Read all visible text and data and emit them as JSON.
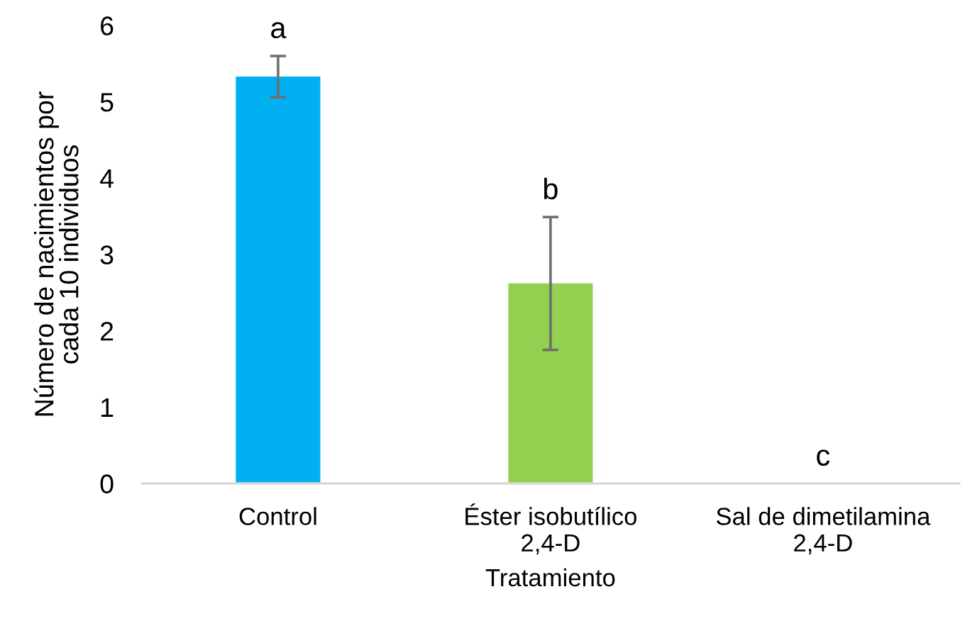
{
  "chart_data": {
    "type": "bar",
    "xlabel": "Tratamiento",
    "ylabel": "Número de nacimientos por\ncada 10 individuos",
    "categories": [
      "Control",
      "Éster isobutílico\n2,4-D",
      "Sal de dimetilamina\n2,4-D"
    ],
    "values": [
      5.33,
      2.62,
      0
    ],
    "errors": [
      0.27,
      0.87,
      null
    ],
    "colors": [
      "#00b0f0",
      "#92d050",
      "#a5a5a5"
    ],
    "ylim": [
      0,
      6
    ],
    "yticks": [
      0,
      1,
      2,
      3,
      4,
      5,
      6
    ],
    "grid": false,
    "legend": false,
    "annotations": [
      {
        "text": "a",
        "x": "Control",
        "y": 5.6
      },
      {
        "text": "b",
        "x": "Éster isobutílico\n2,4-D",
        "y": 3.49
      },
      {
        "text": "c",
        "x": "Sal de dimetilamina\n2,4-D",
        "y": 0
      }
    ]
  }
}
